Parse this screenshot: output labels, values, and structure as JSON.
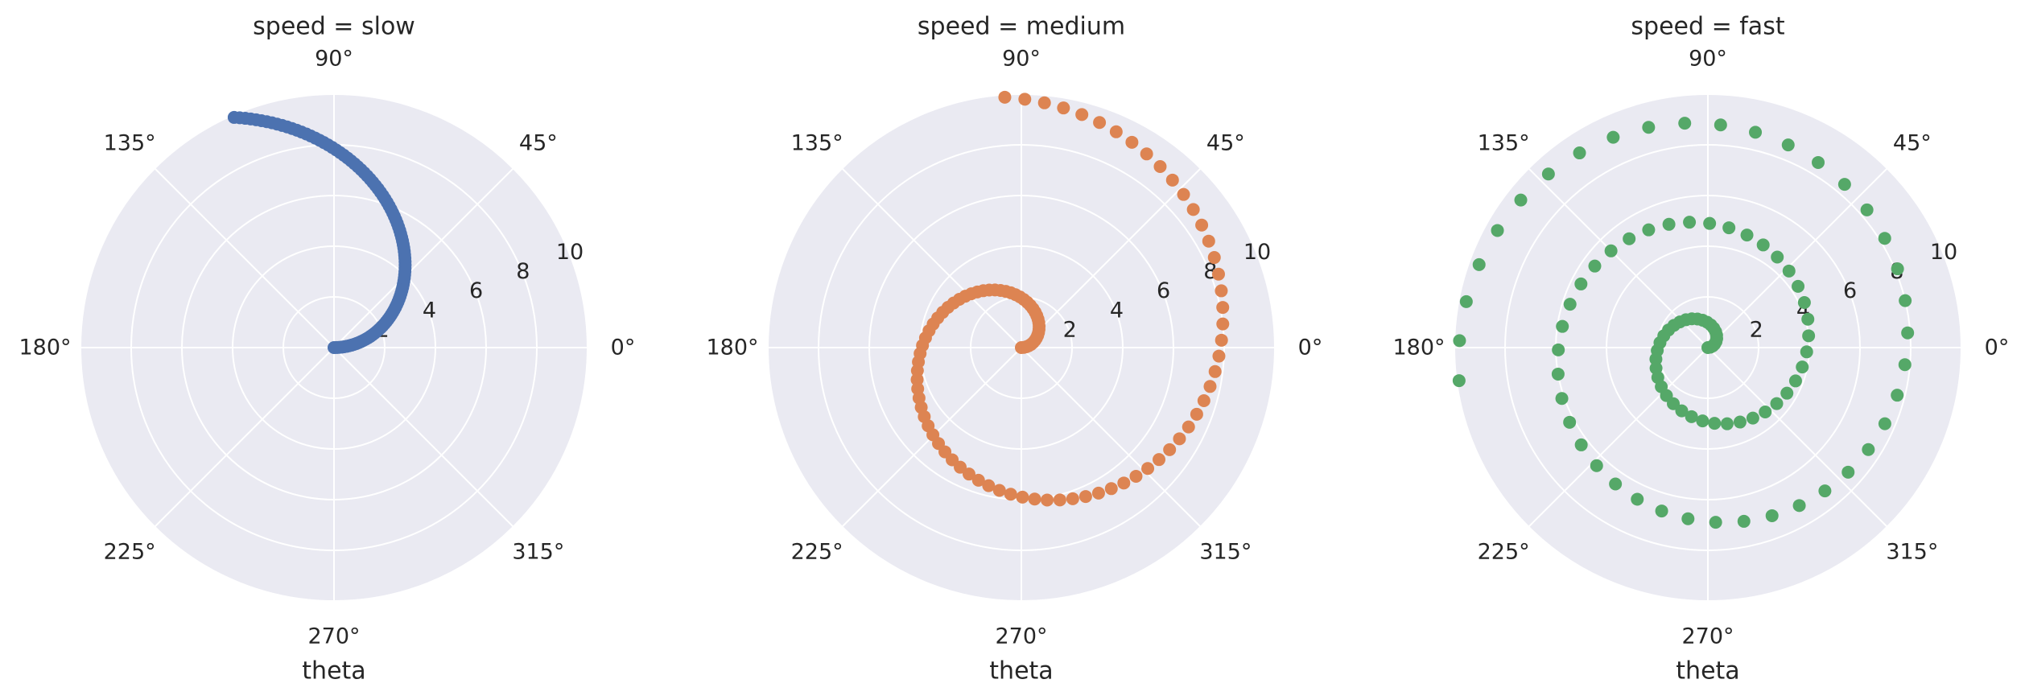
{
  "chart_data": {
    "type": "scatter",
    "projection": "polar",
    "xlabel": "theta",
    "angle_ticks": [
      "0°",
      "45°",
      "90°",
      "135°",
      "180°",
      "225°",
      "270°",
      "315°"
    ],
    "radial_ticks": [
      "2",
      "4",
      "6",
      "8",
      "10"
    ],
    "rlim": [
      0,
      10
    ],
    "grid": true,
    "panels": [
      {
        "title": "speed = slow",
        "color": "#4c72b0",
        "series": {
          "r": [
            0.0,
            0.1,
            0.2,
            0.3,
            0.4,
            0.5,
            0.6,
            0.7,
            0.8,
            0.9,
            1.0,
            1.1,
            1.2,
            1.3,
            1.4,
            1.5,
            1.6,
            1.7,
            1.8,
            1.9,
            2.0,
            2.1,
            2.2,
            2.3,
            2.4,
            2.5,
            2.6,
            2.7,
            2.8,
            2.9,
            3.0,
            3.1,
            3.2,
            3.3,
            3.4,
            3.5,
            3.6,
            3.7,
            3.8,
            3.9,
            4.0,
            4.1,
            4.2,
            4.3,
            4.4,
            4.5,
            4.6,
            4.7,
            4.8,
            4.9,
            5.0,
            5.1,
            5.2,
            5.3,
            5.4,
            5.5,
            5.6,
            5.7,
            5.8,
            5.9,
            6.0,
            6.1,
            6.2,
            6.3,
            6.4,
            6.5,
            6.6,
            6.7,
            6.8,
            6.9,
            7.0,
            7.1,
            7.2,
            7.3,
            7.4,
            7.5,
            7.6,
            7.7,
            7.8,
            7.9,
            8.0,
            8.1,
            8.2,
            8.3,
            8.4,
            8.5,
            8.6,
            8.7,
            8.8,
            8.9,
            9.0,
            9.1,
            9.2,
            9.3,
            9.4,
            9.5,
            9.6,
            9.7,
            9.8,
            9.9
          ],
          "theta_deg": [
            0.0,
            1.15,
            2.29,
            3.44,
            4.58,
            5.73,
            6.88,
            8.02,
            9.17,
            10.31,
            11.46,
            12.61,
            13.75,
            14.9,
            16.04,
            17.19,
            18.33,
            19.48,
            20.63,
            21.77,
            22.92,
            24.06,
            25.21,
            26.36,
            27.5,
            28.65,
            29.79,
            30.94,
            32.09,
            33.23,
            34.38,
            35.52,
            36.67,
            37.82,
            38.96,
            40.11,
            41.25,
            42.4,
            43.54,
            44.69,
            45.84,
            46.98,
            48.13,
            49.27,
            50.42,
            51.57,
            52.71,
            53.86,
            55.0,
            56.15,
            57.3,
            58.44,
            59.59,
            60.73,
            61.88,
            63.03,
            64.17,
            65.32,
            66.46,
            67.61,
            68.75,
            69.9,
            71.05,
            72.19,
            73.34,
            74.48,
            75.63,
            76.78,
            77.92,
            79.07,
            80.21,
            81.36,
            82.51,
            83.65,
            84.8,
            85.94,
            87.09,
            88.24,
            89.38,
            90.53,
            91.67,
            92.82,
            93.97,
            95.11,
            96.26,
            97.4,
            98.55,
            99.69,
            100.84,
            101.99,
            103.13,
            104.28,
            105.42,
            106.57,
            107.72,
            108.86,
            110.01,
            111.15,
            112.3,
            113.45
          ]
        }
      },
      {
        "title": "speed = medium",
        "color": "#dd8452",
        "series": {
          "r": [
            0.0,
            0.1,
            0.2,
            0.3,
            0.4,
            0.5,
            0.6,
            0.7,
            0.8,
            0.9,
            1.0,
            1.1,
            1.2,
            1.3,
            1.4,
            1.5,
            1.6,
            1.7,
            1.8,
            1.9,
            2.0,
            2.1,
            2.2,
            2.3,
            2.4,
            2.5,
            2.6,
            2.7,
            2.8,
            2.9,
            3.0,
            3.1,
            3.2,
            3.3,
            3.4,
            3.5,
            3.6,
            3.7,
            3.8,
            3.9,
            4.0,
            4.1,
            4.2,
            4.3,
            4.4,
            4.5,
            4.6,
            4.7,
            4.8,
            4.9,
            5.0,
            5.1,
            5.2,
            5.3,
            5.4,
            5.5,
            5.6,
            5.7,
            5.8,
            5.9,
            6.0,
            6.1,
            6.2,
            6.3,
            6.4,
            6.5,
            6.6,
            6.7,
            6.8,
            6.9,
            7.0,
            7.1,
            7.2,
            7.3,
            7.4,
            7.5,
            7.6,
            7.7,
            7.8,
            7.9,
            8.0,
            8.1,
            8.2,
            8.3,
            8.4,
            8.5,
            8.6,
            8.7,
            8.8,
            8.9,
            9.0,
            9.1,
            9.2,
            9.3,
            9.4,
            9.5,
            9.6,
            9.7,
            9.8,
            9.9
          ],
          "theta_deg": [
            0.0,
            4.58,
            9.17,
            13.75,
            18.33,
            22.92,
            27.5,
            32.09,
            36.67,
            41.25,
            45.84,
            50.42,
            55.0,
            59.59,
            64.17,
            68.75,
            73.34,
            77.92,
            82.51,
            87.09,
            91.67,
            96.26,
            100.84,
            105.42,
            110.01,
            114.59,
            119.18,
            123.76,
            128.34,
            132.93,
            137.51,
            142.09,
            146.68,
            151.26,
            155.84,
            160.43,
            165.01,
            169.6,
            174.18,
            178.76,
            183.35,
            187.93,
            192.51,
            197.1,
            201.68,
            206.26,
            210.85,
            215.43,
            220.02,
            224.6,
            229.18,
            233.77,
            238.35,
            242.93,
            247.52,
            252.1,
            256.68,
            261.27,
            265.85,
            270.43,
            275.02,
            279.6,
            284.19,
            288.77,
            293.35,
            297.94,
            302.52,
            307.1,
            311.69,
            316.27,
            320.86,
            325.44,
            330.02,
            334.61,
            339.19,
            343.77,
            348.36,
            352.94,
            357.53,
            362.11,
            366.69,
            371.28,
            375.86,
            380.44,
            385.03,
            389.61,
            394.19,
            398.78,
            403.36,
            407.95,
            412.53,
            417.11,
            421.7,
            426.28,
            430.86,
            435.45,
            440.03,
            444.61,
            449.2,
            453.78
          ]
        }
      },
      {
        "title": "speed = fast",
        "color": "#55a868",
        "series": {
          "r": [
            0.0,
            0.1,
            0.2,
            0.3,
            0.4,
            0.5,
            0.6,
            0.7,
            0.8,
            0.9,
            1.0,
            1.1,
            1.2,
            1.3,
            1.4,
            1.5,
            1.6,
            1.7,
            1.8,
            1.9,
            2.0,
            2.1,
            2.2,
            2.3,
            2.4,
            2.5,
            2.6,
            2.7,
            2.8,
            2.9,
            3.0,
            3.1,
            3.2,
            3.3,
            3.4,
            3.5,
            3.6,
            3.7,
            3.8,
            3.9,
            4.0,
            4.1,
            4.2,
            4.3,
            4.4,
            4.5,
            4.6,
            4.7,
            4.8,
            4.9,
            5.0,
            5.1,
            5.2,
            5.3,
            5.4,
            5.5,
            5.6,
            5.7,
            5.8,
            5.9,
            6.0,
            6.1,
            6.2,
            6.3,
            6.4,
            6.5,
            6.6,
            6.7,
            6.8,
            6.9,
            7.0,
            7.1,
            7.2,
            7.3,
            7.4,
            7.5,
            7.6,
            7.7,
            7.8,
            7.9,
            8.0,
            8.1,
            8.2,
            8.3,
            8.4,
            8.5,
            8.6,
            8.7,
            8.8,
            8.9,
            9.0,
            9.1,
            9.2,
            9.3,
            9.4,
            9.5,
            9.6,
            9.7,
            9.8,
            9.9
          ],
          "theta_deg": [
            0.0,
            9.17,
            18.33,
            27.5,
            36.67,
            45.84,
            55.0,
            64.17,
            73.34,
            82.51,
            91.67,
            100.84,
            110.01,
            119.18,
            128.34,
            137.51,
            146.68,
            155.84,
            165.01,
            174.18,
            183.35,
            192.51,
            201.68,
            210.85,
            220.02,
            229.18,
            238.35,
            247.52,
            256.68,
            265.85,
            275.02,
            284.19,
            293.35,
            302.52,
            311.69,
            320.86,
            330.02,
            339.19,
            348.36,
            357.53,
            366.69,
            375.86,
            385.03,
            394.19,
            403.36,
            412.53,
            421.7,
            430.86,
            440.03,
            449.2,
            458.37,
            467.53,
            476.7,
            485.87,
            495.04,
            504.2,
            513.37,
            522.54,
            531.71,
            540.87,
            550.04,
            559.21,
            568.38,
            577.54,
            586.71,
            595.88,
            605.04,
            614.21,
            623.38,
            632.55,
            641.71,
            650.88,
            660.05,
            669.22,
            678.38,
            687.55,
            696.72,
            705.88,
            715.05,
            724.22,
            733.39,
            742.55,
            751.72,
            760.89,
            770.06,
            779.22,
            788.39,
            797.56,
            806.73,
            815.89,
            825.06,
            834.23,
            843.39,
            852.56,
            861.73,
            870.9,
            880.06,
            889.23,
            898.4,
            907.57
          ]
        }
      }
    ]
  }
}
